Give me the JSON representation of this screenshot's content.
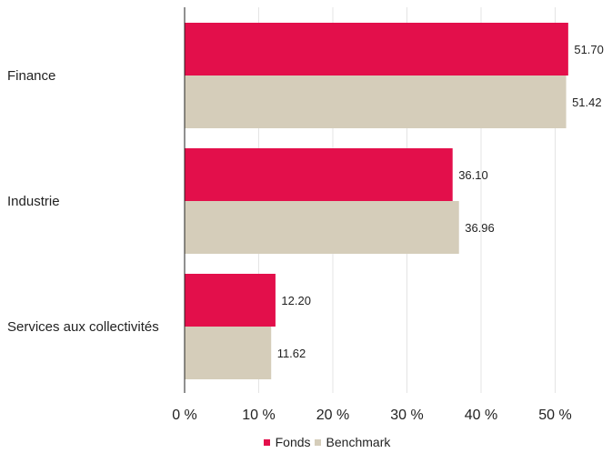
{
  "chart_data": {
    "type": "bar",
    "orientation": "horizontal",
    "categories": [
      "Finance",
      "Industrie",
      "Services aux collectivités"
    ],
    "series": [
      {
        "name": "Fonds",
        "color": "#e30f4b",
        "values": [
          51.7,
          36.1,
          12.2
        ],
        "labels": [
          "51.70",
          "36.10",
          "12.20"
        ]
      },
      {
        "name": "Benchmark",
        "color": "#d5cdba",
        "values": [
          51.42,
          36.96,
          11.62
        ],
        "labels": [
          "51.42",
          "36.96",
          "11.62"
        ]
      }
    ],
    "xlim": [
      0,
      55
    ],
    "xticks": [
      0,
      10,
      20,
      30,
      40,
      50
    ],
    "xtick_labels": [
      "0 %",
      "10 %",
      "20 %",
      "30 %",
      "40 %",
      "50 %"
    ],
    "grid": true,
    "legend_position": "bottom-center"
  }
}
